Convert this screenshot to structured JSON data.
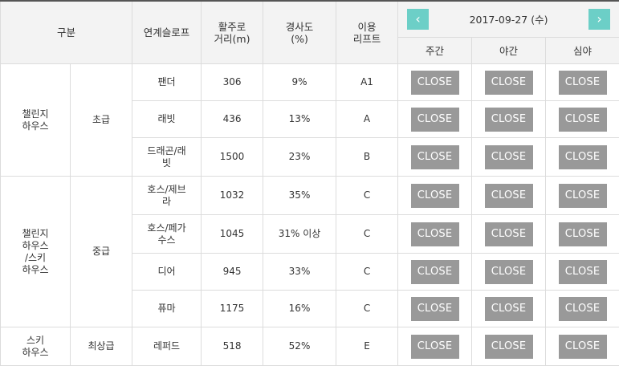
{
  "header": {
    "category": "구분",
    "slope": "연계슬로프",
    "distance": "활주로\n거리(m)",
    "gradient": "경사도\n(%)",
    "lift": "이용\n리프트",
    "date": "2017-09-27 (수)",
    "prev": "‹",
    "next": "›",
    "periods": [
      "주간",
      "야간",
      "심야"
    ]
  },
  "status_label": "CLOSE",
  "groups": [
    {
      "name": "챌린지\n하우스",
      "level": "초급"
    },
    {
      "name": "챌린지\n하우스\n/스키\n하우스",
      "level": "중급"
    },
    {
      "name": "스키\n하우스",
      "level": "최상급"
    }
  ],
  "rows": [
    {
      "slope": "팬더",
      "distance": "306",
      "gradient": "9%",
      "lift": "A1"
    },
    {
      "slope": "래빗",
      "distance": "436",
      "gradient": "13%",
      "lift": "A"
    },
    {
      "slope": "드래곤/래\n빗",
      "distance": "1500",
      "gradient": "23%",
      "lift": "B"
    },
    {
      "slope": "호스/제브\n라",
      "distance": "1032",
      "gradient": "35%",
      "lift": "C"
    },
    {
      "slope": "호스/페가\n수스",
      "distance": "1045",
      "gradient": "31% 이상",
      "lift": "C"
    },
    {
      "slope": "디어",
      "distance": "945",
      "gradient": "33%",
      "lift": "C"
    },
    {
      "slope": "퓨마",
      "distance": "1175",
      "gradient": "16%",
      "lift": "C"
    },
    {
      "slope": "레퍼드",
      "distance": "518",
      "gradient": "52%",
      "lift": "E"
    }
  ],
  "colors": {
    "nav": "#6ccfc7",
    "close_button": "#999999",
    "header_bg": "#f3f3f3"
  }
}
